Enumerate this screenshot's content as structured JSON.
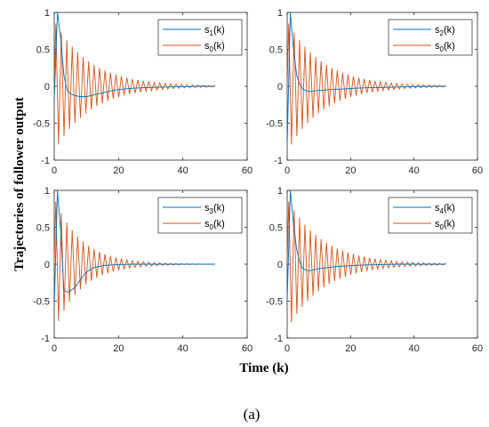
{
  "figure": {
    "caption": "(a)",
    "ylabel": "Trajectories of follower output",
    "xlabel": "Time (k)"
  },
  "colors": {
    "follower": "#0072BD",
    "leader": "#D95319",
    "axis": "#262626"
  },
  "chart_data": [
    {
      "type": "line",
      "xlim": [
        0,
        60
      ],
      "ylim": [
        -1,
        1
      ],
      "xticks": [
        "0",
        "20",
        "40",
        "60"
      ],
      "yticks": [
        "-1",
        "-0.5",
        "0",
        "0.5",
        "1"
      ],
      "legend_position": "top-right",
      "series": [
        {
          "base": "s",
          "sub": "1",
          "suffix": "(k)",
          "color": "follower",
          "x": [
            0,
            1,
            2,
            3,
            4,
            5,
            6,
            7,
            8,
            9,
            10,
            11,
            12,
            13,
            14,
            15,
            16,
            17,
            18,
            19,
            20,
            22,
            25,
            30,
            35,
            40,
            45,
            50
          ],
          "y": [
            -0.2,
            1.0,
            0.65,
            0.15,
            -0.05,
            -0.1,
            -0.12,
            -0.13,
            -0.14,
            -0.14,
            -0.14,
            -0.13,
            -0.12,
            -0.11,
            -0.1,
            -0.09,
            -0.08,
            -0.07,
            -0.06,
            -0.05,
            -0.045,
            -0.035,
            -0.025,
            -0.015,
            -0.01,
            -0.005,
            0,
            0
          ]
        },
        {
          "base": "s",
          "sub": "0",
          "suffix": "(k)",
          "color": "leader",
          "oscillation": {
            "start": 0.5,
            "end": 50,
            "period": 1.7,
            "amplitude": 0.85,
            "decay": 0.09
          }
        }
      ]
    },
    {
      "type": "line",
      "xlim": [
        0,
        60
      ],
      "ylim": [
        -1,
        1
      ],
      "xticks": [
        "0",
        "20",
        "40",
        "60"
      ],
      "yticks": [
        "-1",
        "-0.5",
        "0",
        "0.5",
        "1"
      ],
      "legend_position": "top-right",
      "series": [
        {
          "base": "s",
          "sub": "2",
          "suffix": "(k)",
          "color": "follower",
          "x": [
            0,
            1,
            2,
            3,
            4,
            5,
            6,
            7,
            8,
            9,
            10,
            12,
            14,
            16,
            18,
            20,
            22,
            25,
            30,
            35,
            40,
            45,
            50
          ],
          "y": [
            -0.8,
            1.0,
            0.5,
            0.15,
            0.02,
            -0.04,
            -0.06,
            -0.07,
            -0.065,
            -0.06,
            -0.055,
            -0.05,
            -0.045,
            -0.04,
            -0.035,
            -0.03,
            -0.025,
            -0.02,
            -0.015,
            -0.01,
            -0.005,
            0,
            0
          ]
        },
        {
          "base": "s",
          "sub": "0",
          "suffix": "(k)",
          "color": "leader",
          "oscillation": {
            "start": 0.5,
            "end": 50,
            "period": 1.7,
            "amplitude": 0.85,
            "decay": 0.09
          }
        }
      ]
    },
    {
      "type": "line",
      "xlim": [
        0,
        60
      ],
      "ylim": [
        -1,
        1
      ],
      "xticks": [
        "0",
        "20",
        "40",
        "60"
      ],
      "yticks": [
        "-1",
        "-0.5",
        "0",
        "0.5",
        "1"
      ],
      "legend_position": "top-right",
      "series": [
        {
          "base": "s",
          "sub": "3",
          "suffix": "(k)",
          "color": "follower",
          "x": [
            0,
            1,
            2,
            3,
            4,
            5,
            6,
            7,
            8,
            9,
            10,
            11,
            12,
            14,
            16,
            18,
            20,
            25,
            30,
            35,
            40,
            45,
            50
          ],
          "y": [
            -0.6,
            1.0,
            0.45,
            -0.35,
            -0.38,
            -0.36,
            -0.33,
            -0.28,
            -0.22,
            -0.16,
            -0.11,
            -0.08,
            -0.05,
            -0.03,
            -0.015,
            -0.01,
            -0.005,
            0,
            0,
            0,
            0,
            0,
            0
          ]
        },
        {
          "base": "s",
          "sub": "0",
          "suffix": "(k)",
          "color": "leader",
          "oscillation": {
            "start": 0.5,
            "end": 50,
            "period": 1.7,
            "amplitude": 0.85,
            "decay": 0.12
          }
        }
      ]
    },
    {
      "type": "line",
      "xlim": [
        0,
        60
      ],
      "ylim": [
        -1,
        1
      ],
      "xticks": [
        "0",
        "20",
        "40",
        "60"
      ],
      "yticks": [
        "-1",
        "-0.5",
        "0",
        "0.5",
        "1"
      ],
      "legend_position": "top-right",
      "series": [
        {
          "base": "s",
          "sub": "4",
          "suffix": "(k)",
          "color": "follower",
          "x": [
            0,
            1,
            2,
            3,
            4,
            5,
            6,
            7,
            8,
            9,
            10,
            12,
            14,
            16,
            18,
            20,
            22,
            25,
            30,
            35,
            40,
            45,
            50
          ],
          "y": [
            -0.5,
            1.0,
            0.55,
            0.2,
            0.02,
            -0.06,
            -0.08,
            -0.09,
            -0.08,
            -0.07,
            -0.06,
            -0.05,
            -0.04,
            -0.03,
            -0.025,
            -0.02,
            -0.015,
            -0.01,
            -0.005,
            0,
            0,
            0,
            0
          ]
        },
        {
          "base": "s",
          "sub": "0",
          "suffix": "(k)",
          "color": "leader",
          "oscillation": {
            "start": 0.5,
            "end": 50,
            "period": 1.7,
            "amplitude": 0.85,
            "decay": 0.09
          }
        }
      ]
    }
  ]
}
